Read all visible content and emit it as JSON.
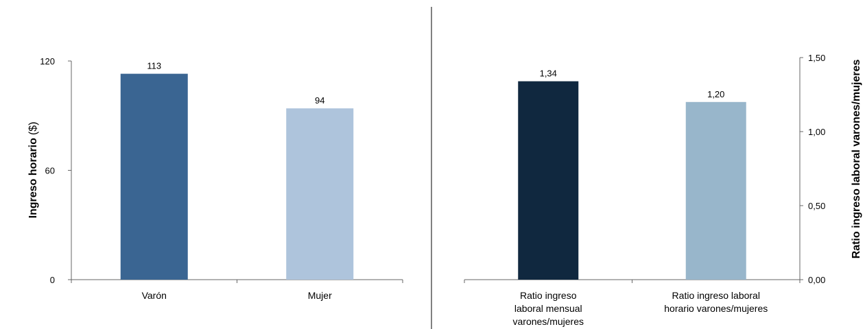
{
  "chart_data": [
    {
      "type": "bar",
      "categories": [
        "Varón",
        "Mujer"
      ],
      "values": [
        113,
        94
      ],
      "data_labels": [
        "113",
        "94"
      ],
      "colors": [
        "#3a6592",
        "#aec4dc"
      ],
      "ylabel": "Ingreso horario",
      "ylabel_unit": "($)",
      "ylim": [
        0,
        120
      ],
      "yticks": [
        0,
        60,
        120
      ],
      "ytick_labels": [
        "0",
        "60",
        "120"
      ],
      "axis_side": "left",
      "grid": false
    },
    {
      "type": "bar",
      "categories": [
        "Ratio ingreso laboral mensual varones/mujeres",
        "Ratio ingreso laboral horario varones/mujeres"
      ],
      "category_lines": [
        [
          "Ratio ingreso",
          "laboral mensual",
          "varones/mujeres"
        ],
        [
          "Ratio ingreso laboral",
          "horario varones/mujeres"
        ]
      ],
      "values": [
        1.34,
        1.2
      ],
      "data_labels": [
        "1,34",
        "1,20"
      ],
      "colors": [
        "#10283f",
        "#98b6cb"
      ],
      "ylabel": "Ratio ingreso laboral varones/mujeres",
      "ylim": [
        0,
        1.5
      ],
      "yticks": [
        0,
        0.5,
        1.0,
        1.5
      ],
      "ytick_labels": [
        "0,00",
        "0,50",
        "1,00",
        "1,50"
      ],
      "axis_side": "right",
      "grid": false
    }
  ]
}
